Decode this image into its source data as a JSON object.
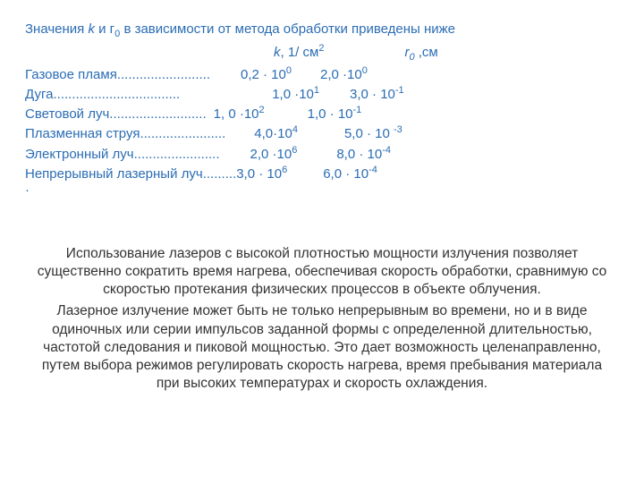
{
  "colors": {
    "accent": "#2b6db4",
    "body_text": "#333333",
    "background": "#ffffff"
  },
  "typography": {
    "font_family": "Arial",
    "heading_size_pt": 11,
    "body_size_pt": 11.5
  },
  "intro_line_prefix": "Значения ",
  "intro_k": "k",
  "intro_and": " и г",
  "intro_sub0": "0",
  "intro_rest": " в зависимости от метода обработки приведены ниже",
  "header_k": "k",
  "header_k_unit": ", 1/ см",
  "header_k_sup": "2",
  "header_r": "r",
  "header_r_sub": "0",
  "header_r_unit": " ,см",
  "table": [
    {
      "name": "Газовое пламя ",
      "dots": ".........................",
      "pad_k": 34,
      "k_text": "0,2 · 10",
      "k_exp": "0",
      "pad_r": 32,
      "r_text": "2,0 ·10",
      "r_exp": "0"
    },
    {
      "name": "Дуга",
      "dots": "..................................",
      "pad_k": 103,
      "k_text": "1,0  ·10",
      "k_exp": "1",
      "pad_r": 34,
      "r_text": "3,0 · 10",
      "r_exp": "-1"
    },
    {
      "name": "Световой луч ",
      "dots": "..........................",
      "pad_k": 8,
      "k_text": "1, 0 ·10",
      "k_exp": "2",
      "pad_r": 48,
      "r_text": "1,0 · 10",
      "r_exp": "-1"
    },
    {
      "name": "Плазменная струя",
      "dots": ".......................",
      "pad_k": 32,
      "k_text": "4,0·10",
      "k_exp": "4",
      "pad_r": 52,
      "r_text": "5,0 · 10 ",
      "r_exp": "-3"
    },
    {
      "name": "Электронный луч",
      "dots": ".......................",
      "pad_k": 34,
      "k_text": "2,0 ·10",
      "k_exp": "6",
      "pad_r": 44,
      "r_text": "8,0 ·  10",
      "r_exp": "-4"
    },
    {
      "name": "Непрерывный лазерный луч ",
      "dots": ".........",
      "pad_k": 0,
      "k_text": "3,0 · 10",
      "k_exp": "6",
      "pad_r": 40,
      "r_text": "6,0 · 10",
      "r_exp": "-4"
    }
  ],
  "trailing_dot": "·",
  "paragraph1": "Использование лазеров с высокой плотностью мощности излучения позволяет существенно сократить время нагрева, обеспечивая скорость обработки, сравнимую со скоростью протекания физических процессов в объекте облучения.",
  "paragraph2": "Лазерное излучение может быть не только непрерывным во времени, но и в виде одиночных или серии импульсов заданной формы с определенной длительностью, частотой следования и пиковой мощностью. Это дает возможность целенаправленно, путем выбора режимов регулировать скорость нагрева, время пребывания материала при высоких температурах и скорость охлаждения."
}
